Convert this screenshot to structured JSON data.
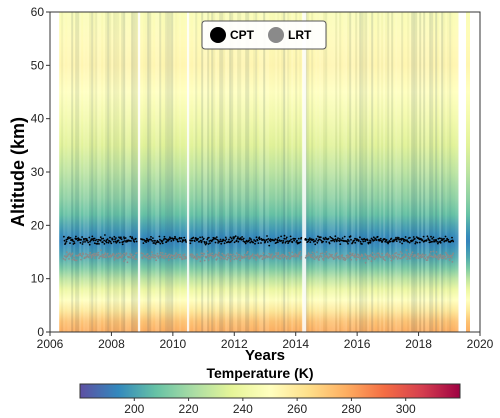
{
  "chart_data": {
    "type": "heatmap",
    "xlabel": "Years",
    "ylabel": "Altitude (km)",
    "xlim": [
      2006,
      2020
    ],
    "ylim": [
      0,
      60
    ],
    "x_ticks": [
      "2006",
      "2008",
      "2010",
      "2012",
      "2014",
      "2016",
      "2018",
      "2020"
    ],
    "y_ticks": [
      "0",
      "10",
      "20",
      "30",
      "40",
      "50",
      "60"
    ],
    "grid": false,
    "data_span": {
      "start": 2006.3,
      "end": 2019.3
    },
    "gaps": [
      2008.9,
      2010.5,
      2014.25
    ],
    "temperature_profile": {
      "altitude_km": [
        0,
        2,
        4,
        6,
        8,
        10,
        12,
        14,
        16,
        17,
        18,
        20,
        22,
        25,
        30,
        35,
        40,
        45,
        50,
        55,
        60
      ],
      "temperature_K": [
        278,
        272,
        260,
        250,
        240,
        226,
        212,
        202,
        196,
        193,
        195,
        201,
        208,
        216,
        226,
        235,
        243,
        250,
        254,
        252,
        247
      ]
    },
    "series": [
      {
        "name": "CPT",
        "color": "#000000",
        "altitude_mean_km": 17.2,
        "altitude_spread_km": 0.6
      },
      {
        "name": "LRT",
        "color": "#8a8a8a",
        "altitude_mean_km": 14.2,
        "altitude_spread_km": 0.7
      }
    ],
    "legend": {
      "placement": "top-center",
      "entries": [
        "CPT",
        "LRT"
      ]
    },
    "colorbar": {
      "title": "Temperature (K)",
      "range": [
        180,
        320
      ],
      "ticks": [
        "200",
        "220",
        "240",
        "260",
        "280",
        "300"
      ],
      "colormap": "Spectral_r"
    }
  }
}
